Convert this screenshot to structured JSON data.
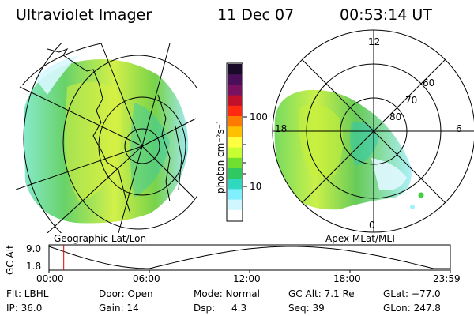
{
  "header": {
    "title": "Ultraviolet Imager",
    "date": "11 Dec 07",
    "time": "00:53:14 UT"
  },
  "left_panel": {
    "caption": "Geographic Lat/Lon"
  },
  "right_panel": {
    "caption": "Apex MLat/MLT",
    "mlt_labels": [
      "12",
      "18",
      "6",
      "0"
    ],
    "lat_labels": [
      "60",
      "70",
      "80"
    ]
  },
  "colorbar": {
    "unit_label": "photon cm⁻²s⁻¹",
    "ticks": [
      "100",
      "10"
    ],
    "scale": "log",
    "colors": [
      "#1a0a2a",
      "#4b0f5a",
      "#7a1060",
      "#c0102a",
      "#ff2a10",
      "#ff7a00",
      "#ffc000",
      "#ffff40",
      "#c8ff30",
      "#70e030",
      "#30c860",
      "#30d8c0",
      "#80f0ff",
      "#d0f6ff",
      "#ffffff"
    ]
  },
  "alt_plot": {
    "ylabel": "GC Alt",
    "yticks": [
      "9.0",
      "1.8"
    ],
    "xticks": [
      "00:00",
      "06:00",
      "12:00",
      "18:00",
      "23:59"
    ],
    "marker_time": "00:53"
  },
  "info": {
    "flt": "Flt: LBHL",
    "door": "Door: Open",
    "mode": "Mode: Normal",
    "gc_alt": "GC Alt: 7.1 Re",
    "glat": "GLat: −77.0",
    "ip": "IP: 36.0",
    "gain": "Gain: 14",
    "dsp_label": "Dsp:",
    "dsp_value": "4.3",
    "seq": "Seq: 39",
    "glon": "GLon: 247.8"
  }
}
